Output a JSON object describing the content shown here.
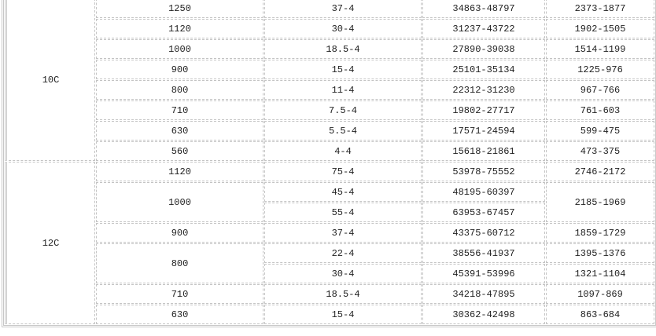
{
  "groups": [
    {
      "label": "10C",
      "rows": [
        {
          "size": "1250",
          "power": "37-4",
          "flow": "34863-48797",
          "pressure": "2373-1877"
        },
        {
          "size": "1120",
          "power": "30-4",
          "flow": "31237-43722",
          "pressure": "1902-1505"
        },
        {
          "size": "1000",
          "power": "18.5-4",
          "flow": "27890-39038",
          "pressure": "1514-1199"
        },
        {
          "size": "900",
          "power": "15-4",
          "flow": "25101-35134",
          "pressure": "1225-976"
        },
        {
          "size": "800",
          "power": "11-4",
          "flow": "22312-31230",
          "pressure": "967-766"
        },
        {
          "size": "710",
          "power": "7.5-4",
          "flow": "19802-27717",
          "pressure": "761-603"
        },
        {
          "size": "630",
          "power": "5.5-4",
          "flow": "17571-24594",
          "pressure": "599-475"
        },
        {
          "size": "560",
          "power": "4-4",
          "flow": "15618-21861",
          "pressure": "473-375"
        }
      ]
    },
    {
      "label": "12C",
      "rows": [
        {
          "size": "1120",
          "power": "75-4",
          "flow": "53978-75552",
          "pressure": "2746-2172"
        },
        {
          "size": "1000",
          "power": "45-4",
          "flow": "48195-60397",
          "pressure": "2185-1969"
        },
        {
          "size": "",
          "power": "55-4",
          "flow": "63953-67457",
          "pressure": ""
        },
        {
          "size": "900",
          "power": "37-4",
          "flow": "43375-60712",
          "pressure": "1859-1729"
        },
        {
          "size": "800",
          "power": "22-4",
          "flow": "38556-41937",
          "pressure": "1395-1376"
        },
        {
          "size": "",
          "power": "30-4",
          "flow": "45391-53996",
          "pressure": "1321-1104"
        },
        {
          "size": "710",
          "power": "18.5-4",
          "flow": "34218-47895",
          "pressure": "1097-869"
        },
        {
          "size": "630",
          "power": "15-4",
          "flow": "30362-42498",
          "pressure": "863-684"
        }
      ]
    }
  ]
}
